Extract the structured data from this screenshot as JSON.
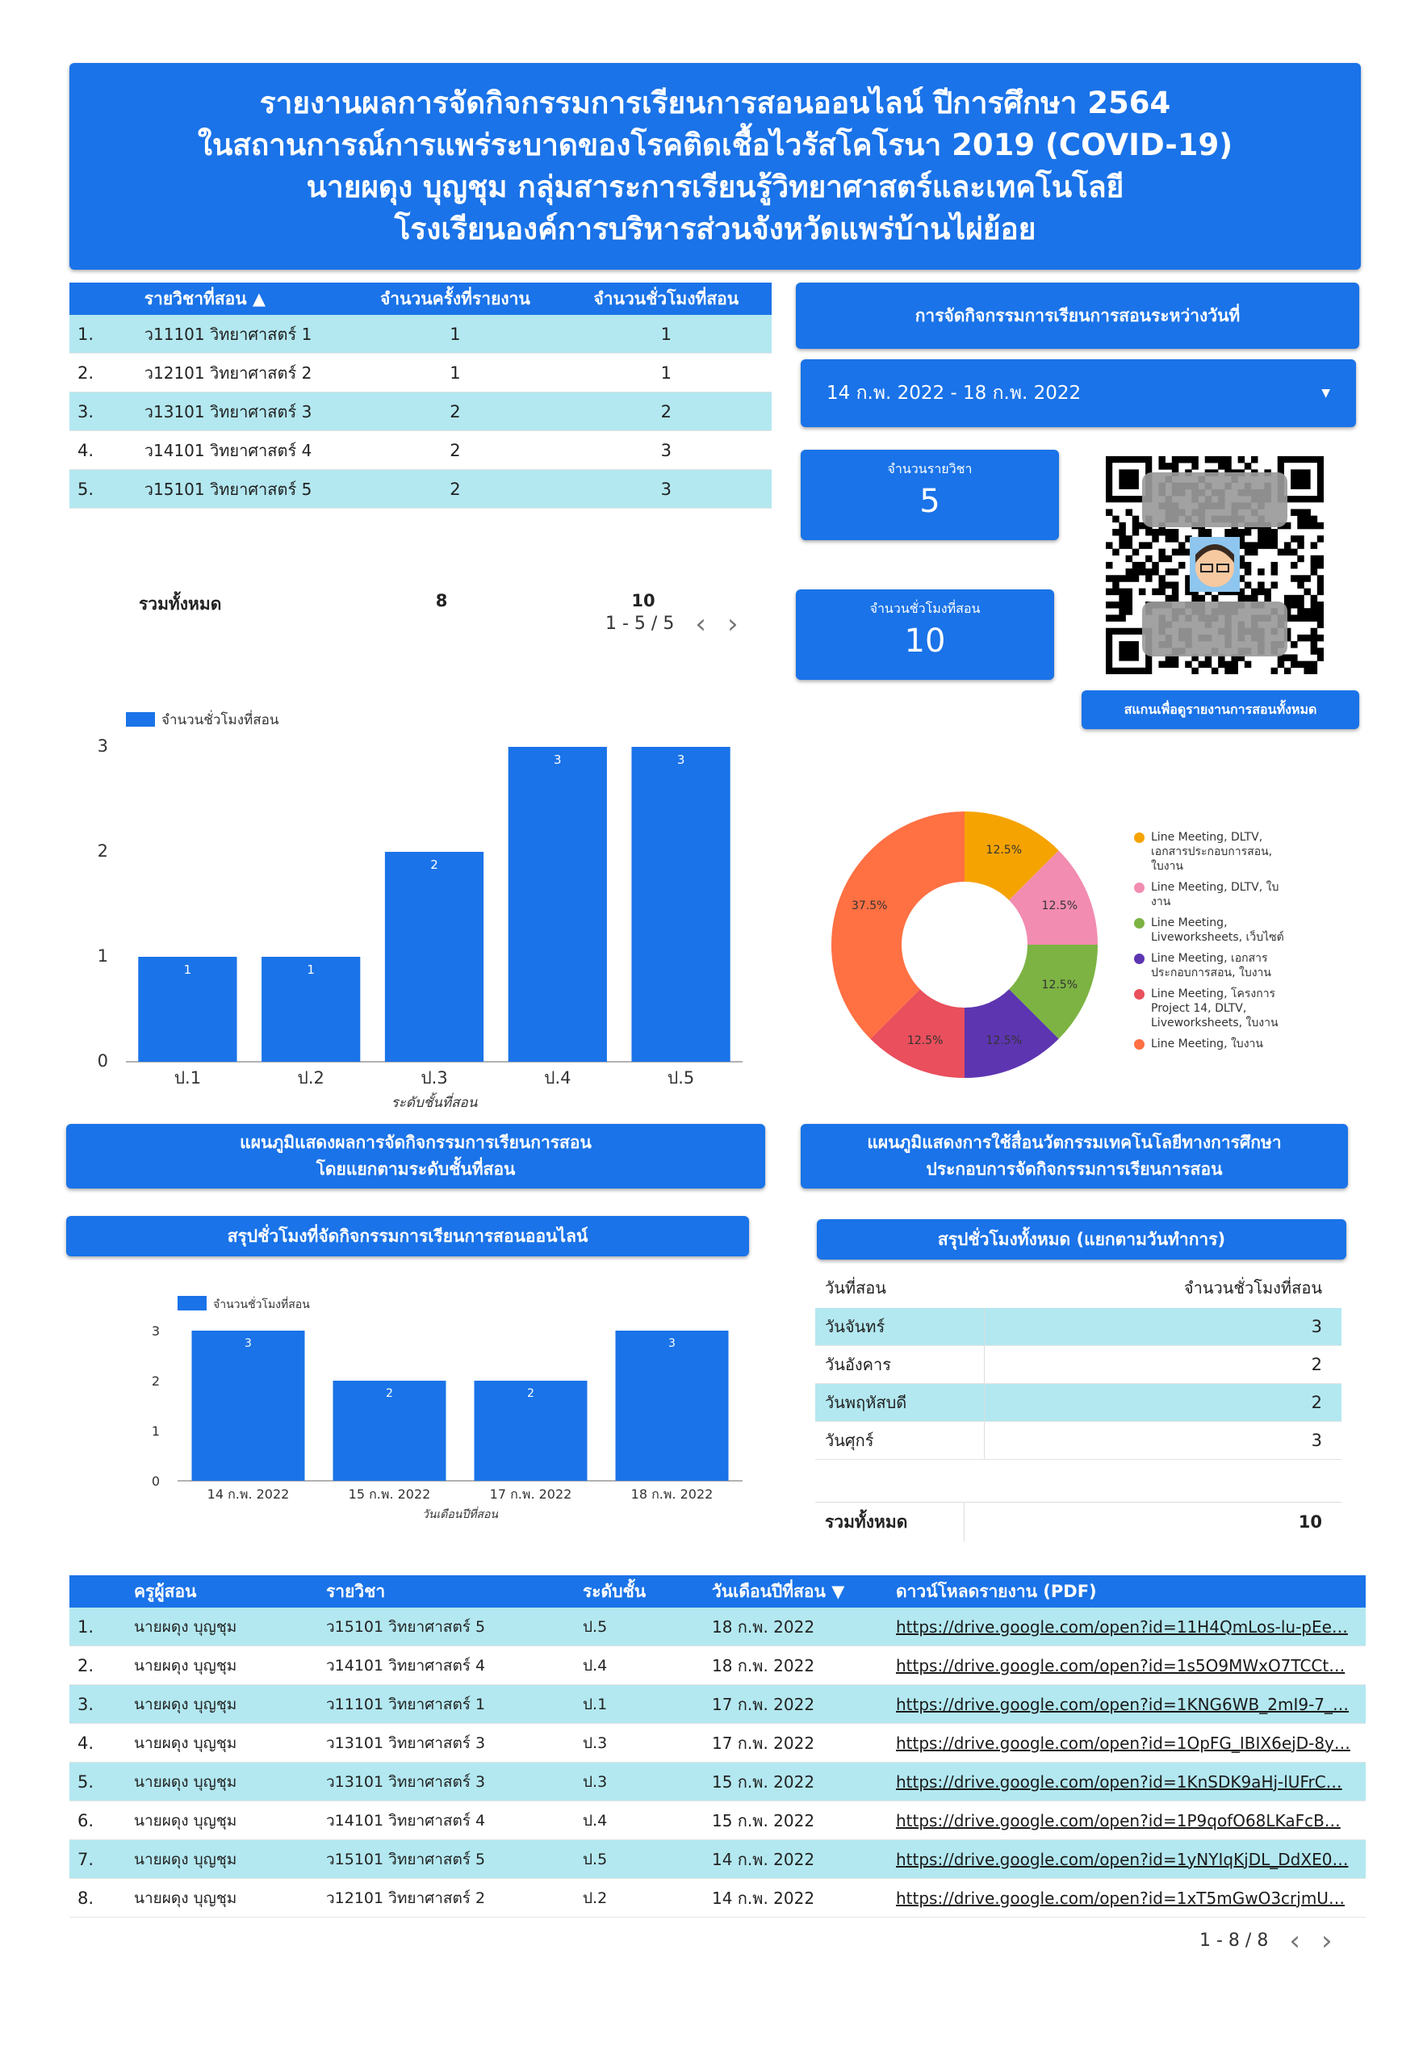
{
  "header": {
    "lines": [
      "รายงานผลการจัดกิจกรรมการเรียนการสอนออนไลน์  ปีการศึกษา 2564",
      "ในสถานการณ์การแพร่ระบาดของโรคติดเชื้อไวรัสโคโรนา 2019 (COVID-19)",
      "นายผดุง  บุญชุม  กลุ่มสาระการเรียนรู้วิทยาศาสตร์และเทคโนโลยี",
      "โรงเรียนองค์การบริหารส่วนจังหวัดแพร่บ้านไผ่ย้อย"
    ]
  },
  "subject_table": {
    "headers": [
      "รายวิชาที่สอน ▲",
      "จำนวนครั้งที่รายงาน",
      "จำนวนชั่วโมงที่สอน"
    ],
    "rows": [
      {
        "idx": "1.",
        "subject": "ว11101 วิทยาศาสตร์ 1",
        "count": "1",
        "hours": "1"
      },
      {
        "idx": "2.",
        "subject": "ว12101 วิทยาศาสตร์ 2",
        "count": "1",
        "hours": "1"
      },
      {
        "idx": "3.",
        "subject": "ว13101 วิทยาศาสตร์ 3",
        "count": "2",
        "hours": "2"
      },
      {
        "idx": "4.",
        "subject": "ว14101 วิทยาศาสตร์ 4",
        "count": "2",
        "hours": "3"
      },
      {
        "idx": "5.",
        "subject": "ว15101 วิทยาศาสตร์ 5",
        "count": "2",
        "hours": "3"
      }
    ],
    "total_label": "รวมทั้งหมด",
    "total_count": "8",
    "total_hours": "10",
    "pager": "1 - 5 / 5"
  },
  "date_panel": {
    "title": "การจัดกิจกรรมการเรียนการสอนระหว่างวันที่",
    "range": "14 ก.พ. 2022 - 18 ก.พ. 2022"
  },
  "kpis": {
    "subjects_label": "จำนวนรายวิชา",
    "subjects_value": "5",
    "hours_label": "จำนวนชั่วโมงที่สอน",
    "hours_value": "10"
  },
  "qr": {
    "scan_label": "สแกนเพื่อดูรายงานการสอนทั้งหมด"
  },
  "chart_level": {
    "type": "bar",
    "legend": "จำนวนชั่วโมงที่สอน",
    "categories": [
      "ป.1",
      "ป.2",
      "ป.3",
      "ป.4",
      "ป.5"
    ],
    "values": [
      1,
      1,
      2,
      3,
      3
    ],
    "xlabel": "ระดับชั้นที่สอน",
    "ylim": [
      0,
      3
    ],
    "yticks": [
      "0",
      "1",
      "2",
      "3"
    ],
    "color": "#1a73e8"
  },
  "chart_media": {
    "type": "pie",
    "slices": [
      {
        "label": "Line Meeting, DLTV, เอกสารประกอบการสอน, ใบงาน",
        "value": 12.5,
        "pct": "12.5%",
        "color": "#f5a300"
      },
      {
        "label": "Line Meeting, DLTV, ใบงาน",
        "value": 12.5,
        "pct": "12.5%",
        "color": "#f28cb1"
      },
      {
        "label": "Line Meeting, Liveworksheets, เว็บไซต์",
        "value": 12.5,
        "pct": "12.5%",
        "color": "#7cb342"
      },
      {
        "label": "Line Meeting, เอกสารประกอบการสอน, ใบงาน",
        "value": 12.5,
        "pct": "12.5%",
        "color": "#5e35b1"
      },
      {
        "label": "Line Meeting, โครงการ Project 14, DLTV, Liveworksheets, ใบงาน",
        "value": 12.5,
        "pct": "12.5%",
        "color": "#e94f5c"
      },
      {
        "label": "Line Meeting, ใบงาน",
        "value": 37.5,
        "pct": "37.5%",
        "color": "#ff7043"
      }
    ]
  },
  "captions": {
    "level_chart": [
      "แผนภูมิแสดงผลการจัดกิจกรรมการเรียนการสอน",
      "โดยแยกตามระดับชั้นที่สอน"
    ],
    "media_chart": [
      "แผนภูมิแสดงการใช้สื่อนวัตกรรมเทคโนโลยีทางการศึกษา",
      "ประกอบการจัดกิจกรรมการเรียนการสอน"
    ],
    "hours_online": "สรุปชั่วโมงที่จัดกิจกรรมการเรียนการสอนออนไลน์",
    "hours_by_day": "สรุปชั่วโมงทั้งหมด (แยกตามวันทำการ)"
  },
  "chart_date": {
    "type": "bar",
    "legend": "จำนวนชั่วโมงที่สอน",
    "categories": [
      "14 ก.พ. 2022",
      "15 ก.พ. 2022",
      "17 ก.พ. 2022",
      "18 ก.พ. 2022"
    ],
    "values": [
      3,
      2,
      2,
      3
    ],
    "xlabel": "วันเดือนปีที่สอน",
    "ylim": [
      0,
      3
    ],
    "yticks": [
      "0",
      "1",
      "2",
      "3"
    ],
    "color": "#1a73e8"
  },
  "day_table": {
    "headers": [
      "วันที่สอน",
      "จำนวนชั่วโมงที่สอน"
    ],
    "rows": [
      {
        "day": "วันจันทร์",
        "hours": "3"
      },
      {
        "day": "วันอังคาร",
        "hours": "2"
      },
      {
        "day": "วันพฤหัสบดี",
        "hours": "2"
      },
      {
        "day": "วันศุกร์",
        "hours": "3"
      }
    ],
    "total_label": "รวมทั้งหมด",
    "total_value": "10"
  },
  "report_table": {
    "headers": [
      "ครูผู้สอน",
      "รายวิชา",
      "ระดับชั้น",
      "วันเดือนปีที่สอน ▼",
      "ดาวน์โหลดรายงาน (PDF)"
    ],
    "rows": [
      {
        "idx": "1.",
        "teacher": "นายผดุง บุญชุม",
        "subject": "ว15101 วิทยาศาสตร์ 5",
        "level": "ป.5",
        "date": "18 ก.พ. 2022",
        "link": "https://drive.google.com/open?id=11H4QmLos-lu-pEe…"
      },
      {
        "idx": "2.",
        "teacher": "นายผดุง บุญชุม",
        "subject": "ว14101 วิทยาศาสตร์ 4",
        "level": "ป.4",
        "date": "18 ก.พ. 2022",
        "link": "https://drive.google.com/open?id=1s5O9MWxO7TCCt…"
      },
      {
        "idx": "3.",
        "teacher": "นายผดุง บุญชุม",
        "subject": "ว11101 วิทยาศาสตร์ 1",
        "level": "ป.1",
        "date": "17 ก.พ. 2022",
        "link": "https://drive.google.com/open?id=1KNG6WB_2mI9-7_…"
      },
      {
        "idx": "4.",
        "teacher": "นายผดุง บุญชุม",
        "subject": "ว13101 วิทยาศาสตร์ 3",
        "level": "ป.3",
        "date": "17 ก.พ. 2022",
        "link": "https://drive.google.com/open?id=1OpFG_IBIX6ejD-8y…"
      },
      {
        "idx": "5.",
        "teacher": "นายผดุง บุญชุม",
        "subject": "ว13101 วิทยาศาสตร์ 3",
        "level": "ป.3",
        "date": "15 ก.พ. 2022",
        "link": "https://drive.google.com/open?id=1KnSDK9aHj-lUFrC…"
      },
      {
        "idx": "6.",
        "teacher": "นายผดุง บุญชุม",
        "subject": "ว14101 วิทยาศาสตร์ 4",
        "level": "ป.4",
        "date": "15 ก.พ. 2022",
        "link": "https://drive.google.com/open?id=1P9qofO68LKaFcB…"
      },
      {
        "idx": "7.",
        "teacher": "นายผดุง บุญชุม",
        "subject": "ว15101 วิทยาศาสตร์ 5",
        "level": "ป.5",
        "date": "14 ก.พ. 2022",
        "link": "https://drive.google.com/open?id=1yNYIqKjDL_DdXE0…"
      },
      {
        "idx": "8.",
        "teacher": "นายผดุง บุญชุม",
        "subject": "ว12101 วิทยาศาสตร์ 2",
        "level": "ป.2",
        "date": "14 ก.พ. 2022",
        "link": "https://drive.google.com/open?id=1xT5mGwO3crjmU…"
      }
    ],
    "pager": "1 - 8 / 8"
  }
}
